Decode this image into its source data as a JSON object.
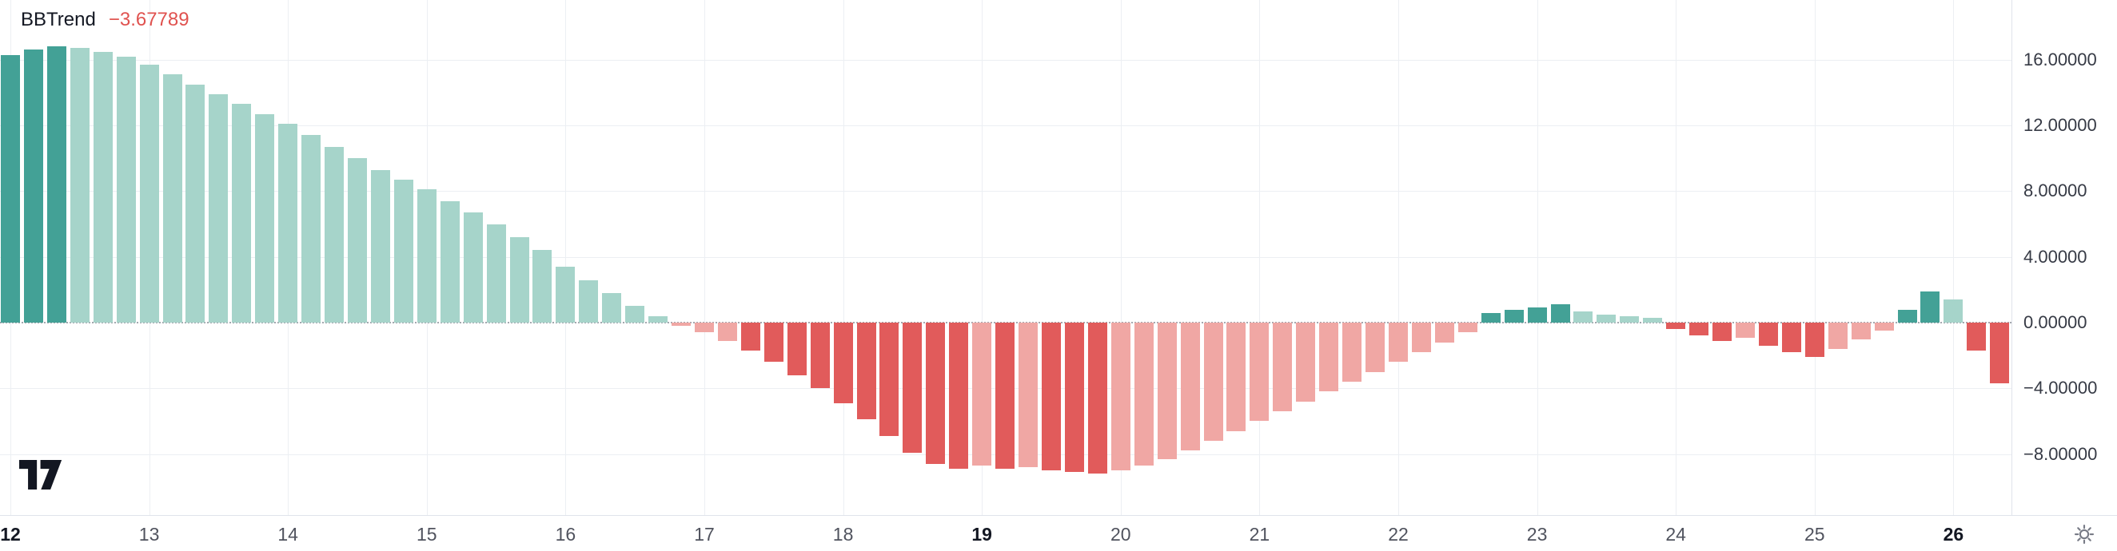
{
  "header": {
    "indicator_name": "BBTrend",
    "indicator_value": "−3.67789"
  },
  "colors": {
    "green_dark": "#43a196",
    "green_light": "#a6d4ca",
    "red_dark": "#e15b5b",
    "red_light": "#f0a7a4",
    "value": "#e0524f",
    "zero_line": "#9598a1",
    "grid": "#eceff3",
    "axis_line": "#e0e3eb",
    "text_primary": "#131722",
    "text_secondary": "#50535e",
    "text_axis": "#363a45",
    "logo": "#131722",
    "icon": "#787b86"
  },
  "chart_data": {
    "type": "bar",
    "title": "BBTrend",
    "xlabel": "",
    "ylabel": "",
    "grid": true,
    "legend_position": "top-left",
    "zero_line": "dotted",
    "ylim": [
      -11.5,
      19.5
    ],
    "y_ticks": {
      "labels": [
        "16.00000",
        "12.00000",
        "8.00000",
        "4.00000",
        "0.00000",
        "−4.00000",
        "−8.00000"
      ],
      "values": [
        16,
        12,
        8,
        4,
        0,
        -4,
        -8
      ]
    },
    "x_ticks": [
      {
        "label": "12",
        "bold": true
      },
      {
        "label": "13",
        "bold": false
      },
      {
        "label": "14",
        "bold": false
      },
      {
        "label": "15",
        "bold": false
      },
      {
        "label": "16",
        "bold": false
      },
      {
        "label": "17",
        "bold": false
      },
      {
        "label": "18",
        "bold": false
      },
      {
        "label": "19",
        "bold": true
      },
      {
        "label": "20",
        "bold": false
      },
      {
        "label": "21",
        "bold": false
      },
      {
        "label": "22",
        "bold": false
      },
      {
        "label": "23",
        "bold": false
      },
      {
        "label": "24",
        "bold": false
      },
      {
        "label": "25",
        "bold": false
      },
      {
        "label": "26",
        "bold": true
      }
    ],
    "bars_per_day": 6,
    "last_value": -3.67789,
    "series": [
      {
        "name": "BBTrend",
        "values": [
          16.3,
          16.6,
          16.8,
          16.7,
          16.5,
          16.2,
          15.7,
          15.1,
          14.5,
          13.9,
          13.3,
          12.7,
          12.1,
          11.4,
          10.7,
          10.0,
          9.3,
          8.7,
          8.1,
          7.4,
          6.7,
          6.0,
          5.2,
          4.4,
          3.4,
          2.6,
          1.8,
          1.0,
          0.4,
          -0.2,
          -0.6,
          -1.1,
          -1.7,
          -2.4,
          -3.2,
          -4.0,
          -4.9,
          -5.9,
          -6.9,
          -7.9,
          -8.6,
          -8.9,
          -8.7,
          -8.9,
          -8.8,
          -9.0,
          -9.1,
          -9.2,
          -9.0,
          -8.7,
          -8.3,
          -7.8,
          -7.2,
          -6.6,
          -6.0,
          -5.4,
          -4.8,
          -4.2,
          -3.6,
          -3.0,
          -2.4,
          -1.8,
          -1.2,
          -0.6,
          0.6,
          0.8,
          0.9,
          1.1,
          0.7,
          0.5,
          0.4,
          0.3,
          -0.4,
          -0.8,
          -1.1,
          -0.9,
          -1.4,
          -1.8,
          -2.1,
          -1.6,
          -1.0,
          -0.5,
          0.8,
          1.9,
          1.4,
          -1.7,
          -3.67789
        ],
        "shades": [
          "d",
          "d",
          "d",
          "l",
          "l",
          "l",
          "l",
          "l",
          "l",
          "l",
          "l",
          "l",
          "l",
          "l",
          "l",
          "l",
          "l",
          "l",
          "l",
          "l",
          "l",
          "l",
          "l",
          "l",
          "l",
          "l",
          "l",
          "l",
          "l",
          "l",
          "l",
          "l",
          "d",
          "d",
          "d",
          "d",
          "d",
          "d",
          "d",
          "d",
          "d",
          "d",
          "l",
          "d",
          "l",
          "d",
          "d",
          "d",
          "l",
          "l",
          "l",
          "l",
          "l",
          "l",
          "l",
          "l",
          "l",
          "l",
          "l",
          "l",
          "l",
          "l",
          "l",
          "l",
          "d",
          "d",
          "d",
          "d",
          "l",
          "l",
          "l",
          "l",
          "d",
          "d",
          "d",
          "l",
          "d",
          "d",
          "d",
          "l",
          "l",
          "l",
          "d",
          "d",
          "l",
          "d",
          "d"
        ]
      }
    ]
  },
  "icons": {
    "logo": "tradingview-logo",
    "bottom_right": "gear-icon"
  }
}
